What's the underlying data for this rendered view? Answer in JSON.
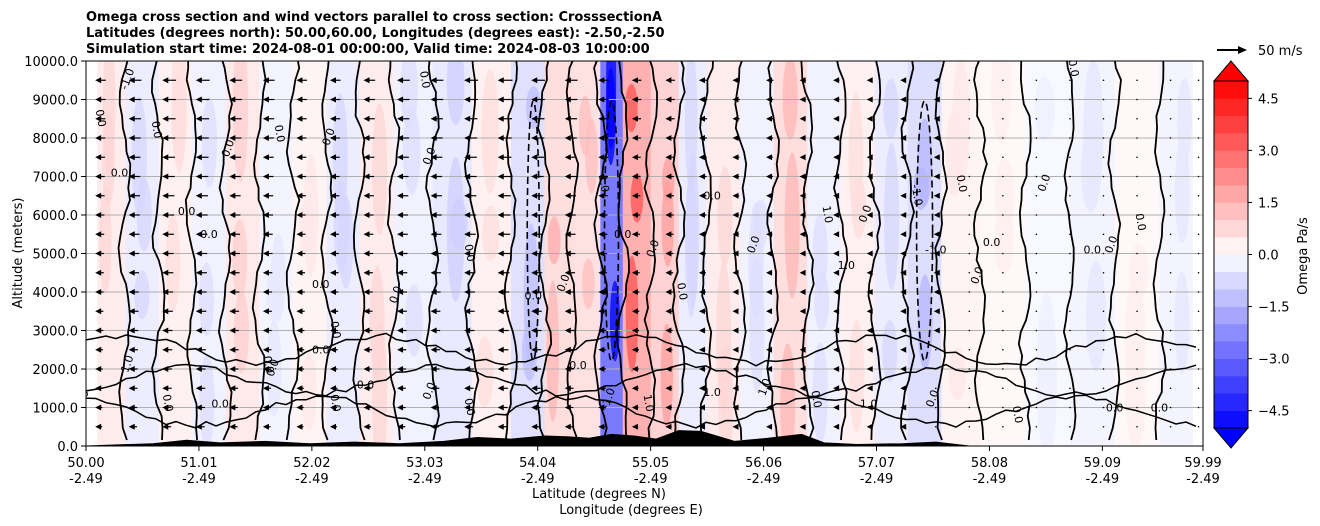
{
  "chart_data": {
    "type": "heatmap",
    "title_lines": [
      "Omega cross section and wind vectors parallel to cross section: CrosssectionA",
      "Latitudes (degrees north): 50.00,60.00, Longitudes (degrees east): -2.50,-2.50",
      "Simulation start time: 2024-08-01 00:00:00, Valid time: 2024-08-03 10:00:00"
    ],
    "xlabel_lines": [
      "Latitude (degrees N)",
      "Longitude (degrees E)"
    ],
    "ylabel": "Altitude (meters)",
    "x_ticks": [
      {
        "lat": "50.00",
        "lon": "-2.49",
        "value": 50.0
      },
      {
        "lat": "51.01",
        "lon": "-2.49",
        "value": 51.01
      },
      {
        "lat": "52.02",
        "lon": "-2.49",
        "value": 52.02
      },
      {
        "lat": "53.03",
        "lon": "-2.49",
        "value": 53.03
      },
      {
        "lat": "54.04",
        "lon": "-2.49",
        "value": 54.04
      },
      {
        "lat": "55.05",
        "lon": "-2.49",
        "value": 55.05
      },
      {
        "lat": "56.06",
        "lon": "-2.49",
        "value": 56.06
      },
      {
        "lat": "57.07",
        "lon": "-2.49",
        "value": 57.07
      },
      {
        "lat": "58.08",
        "lon": "-2.49",
        "value": 58.08
      },
      {
        "lat": "59.09",
        "lon": "-2.49",
        "value": 59.09
      },
      {
        "lat": "59.99",
        "lon": "-2.49",
        "value": 59.99
      }
    ],
    "y_ticks": [
      0,
      1000,
      2000,
      3000,
      4000,
      5000,
      6000,
      7000,
      8000,
      9000,
      10000
    ],
    "y_tick_labels": [
      "0.0",
      "1000.0",
      "2000.0",
      "3000.0",
      "4000.0",
      "5000.0",
      "6000.0",
      "7000.0",
      "8000.0",
      "9000.0",
      "10000.0"
    ],
    "xlim": [
      50.0,
      59.99
    ],
    "ylim": [
      0,
      10000
    ],
    "grid": "horizontal",
    "colorbar": {
      "label": "Omega Pa/s",
      "ticks": [
        4.5,
        3.0,
        1.5,
        0.0,
        -1.5,
        -3.0,
        -4.5
      ],
      "tick_labels": [
        "4.5",
        "3.0",
        "1.5",
        "0.0",
        "−1.5",
        "−3.0",
        "−4.5"
      ],
      "range": [
        -5.0,
        5.0
      ],
      "colormap": "bwr"
    },
    "wind_key": {
      "label": "50 m/s"
    },
    "omega_bands": [
      {
        "lat": 50.2,
        "omega": 0.5
      },
      {
        "lat": 50.5,
        "omega": -0.5
      },
      {
        "lat": 50.8,
        "omega": 0.4
      },
      {
        "lat": 51.1,
        "omega": -0.4
      },
      {
        "lat": 51.4,
        "omega": 0.6
      },
      {
        "lat": 51.7,
        "omega": -0.3
      },
      {
        "lat": 52.0,
        "omega": 0.3
      },
      {
        "lat": 52.3,
        "omega": -0.5
      },
      {
        "lat": 52.6,
        "omega": 0.5
      },
      {
        "lat": 52.9,
        "omega": -0.4
      },
      {
        "lat": 53.3,
        "omega": -0.6
      },
      {
        "lat": 53.6,
        "omega": 0.4
      },
      {
        "lat": 54.0,
        "omega": -0.8
      },
      {
        "lat": 54.2,
        "omega": 0.9
      },
      {
        "lat": 54.5,
        "omega": 0.8
      },
      {
        "lat": 54.7,
        "omega": -3.6
      },
      {
        "lat": 54.9,
        "omega": 2.1
      },
      {
        "lat": 55.2,
        "omega": 1.2
      },
      {
        "lat": 55.4,
        "omega": -0.5
      },
      {
        "lat": 55.7,
        "omega": 0.5
      },
      {
        "lat": 56.0,
        "omega": -0.4
      },
      {
        "lat": 56.3,
        "omega": 0.9
      },
      {
        "lat": 56.6,
        "omega": -0.4
      },
      {
        "lat": 56.9,
        "omega": 0.4
      },
      {
        "lat": 57.2,
        "omega": -0.5
      },
      {
        "lat": 57.5,
        "omega": -0.9
      },
      {
        "lat": 57.8,
        "omega": 0.3
      },
      {
        "lat": 58.2,
        "omega": 0.2
      },
      {
        "lat": 58.6,
        "omega": -0.2
      },
      {
        "lat": 59.0,
        "omega": -0.3
      },
      {
        "lat": 59.4,
        "omega": 0.2
      },
      {
        "lat": 59.8,
        "omega": -0.3
      }
    ],
    "contour_labels": [
      {
        "lat": 50.1,
        "alt": 8500,
        "text": "0.0"
      },
      {
        "lat": 50.3,
        "alt": 7000,
        "text": "0.0"
      },
      {
        "lat": 50.4,
        "alt": 9500,
        "text": "-1.0"
      },
      {
        "lat": 50.6,
        "alt": 8200,
        "text": "0.0"
      },
      {
        "lat": 50.9,
        "alt": 6000,
        "text": "0.0"
      },
      {
        "lat": 51.3,
        "alt": 7700,
        "text": "0.0"
      },
      {
        "lat": 51.7,
        "alt": 8100,
        "text": "0.0"
      },
      {
        "lat": 51.1,
        "alt": 5400,
        "text": "0.0"
      },
      {
        "lat": 52.2,
        "alt": 8000,
        "text": "0.0"
      },
      {
        "lat": 53.0,
        "alt": 9500,
        "text": "0.0"
      },
      {
        "lat": 52.1,
        "alt": 4100,
        "text": "0.0"
      },
      {
        "lat": 53.1,
        "alt": 7500,
        "text": "0.0"
      },
      {
        "lat": 52.2,
        "alt": 3000,
        "text": "0.0"
      },
      {
        "lat": 52.1,
        "alt": 2400,
        "text": "0.0"
      },
      {
        "lat": 52.8,
        "alt": 3900,
        "text": "0.0"
      },
      {
        "lat": 53.4,
        "alt": 5000,
        "text": "0.0"
      },
      {
        "lat": 54.0,
        "alt": 3800,
        "text": "0.0"
      },
      {
        "lat": 54.3,
        "alt": 4200,
        "text": "0.0"
      },
      {
        "lat": 54.6,
        "alt": 6800,
        "text": "1.0"
      },
      {
        "lat": 54.8,
        "alt": 5400,
        "text": "0.0"
      },
      {
        "lat": 55.1,
        "alt": 5100,
        "text": "0.0"
      },
      {
        "lat": 55.3,
        "alt": 4000,
        "text": "0.0"
      },
      {
        "lat": 55.6,
        "alt": 6400,
        "text": "0.0"
      },
      {
        "lat": 56.0,
        "alt": 5200,
        "text": "0.0"
      },
      {
        "lat": 56.6,
        "alt": 6000,
        "text": "1.0"
      },
      {
        "lat": 56.8,
        "alt": 4600,
        "text": "1.0"
      },
      {
        "lat": 57.0,
        "alt": 6000,
        "text": "0.0"
      },
      {
        "lat": 57.4,
        "alt": 6500,
        "text": "-1.0"
      },
      {
        "lat": 57.6,
        "alt": 5000,
        "text": "-1.0"
      },
      {
        "lat": 58.0,
        "alt": 4400,
        "text": "0.0"
      },
      {
        "lat": 57.8,
        "alt": 6800,
        "text": "0.0"
      },
      {
        "lat": 58.1,
        "alt": 5200,
        "text": "0.0"
      },
      {
        "lat": 58.6,
        "alt": 6800,
        "text": "0.0"
      },
      {
        "lat": 58.8,
        "alt": 9800,
        "text": "0.0"
      },
      {
        "lat": 59.0,
        "alt": 5000,
        "text": "0.0"
      },
      {
        "lat": 59.2,
        "alt": 5200,
        "text": "0.0"
      },
      {
        "lat": 59.4,
        "alt": 5800,
        "text": "0.0"
      },
      {
        "lat": 59.2,
        "alt": 900,
        "text": "0.0"
      },
      {
        "lat": 50.4,
        "alt": 2100,
        "text": "1.0"
      },
      {
        "lat": 50.7,
        "alt": 1100,
        "text": "0.0"
      },
      {
        "lat": 51.2,
        "alt": 1000,
        "text": "0.0"
      },
      {
        "lat": 51.7,
        "alt": 2000,
        "text": "0.0"
      },
      {
        "lat": 52.2,
        "alt": 1100,
        "text": "0.0"
      },
      {
        "lat": 52.5,
        "alt": 1500,
        "text": "0.0"
      },
      {
        "lat": 53.1,
        "alt": 1400,
        "text": "0.0"
      },
      {
        "lat": 53.4,
        "alt": 1000,
        "text": "0.0"
      },
      {
        "lat": 54.4,
        "alt": 2000,
        "text": "0.0"
      },
      {
        "lat": 54.7,
        "alt": 1200,
        "text": "-1.0"
      },
      {
        "lat": 55.0,
        "alt": 1100,
        "text": "1.0"
      },
      {
        "lat": 55.6,
        "alt": 1300,
        "text": "1.0"
      },
      {
        "lat": 56.1,
        "alt": 1500,
        "text": "1.0"
      },
      {
        "lat": 56.5,
        "alt": 1200,
        "text": "0.0"
      },
      {
        "lat": 57.0,
        "alt": 1000,
        "text": "1.0"
      },
      {
        "lat": 57.6,
        "alt": 1200,
        "text": "0.0"
      },
      {
        "lat": 58.3,
        "alt": 800,
        "text": "0.0"
      },
      {
        "lat": 59.6,
        "alt": 900,
        "text": "0.0"
      },
      {
        "lat": 50.0,
        "alt": 1200,
        "text": "0.0"
      },
      {
        "lat": 51.6,
        "alt": 2100,
        "text": "0.0"
      }
    ],
    "wind_columns": [
      {
        "lat": 50.1,
        "speed": 8
      },
      {
        "lat": 50.4,
        "speed": 10
      },
      {
        "lat": 50.7,
        "speed": 11
      },
      {
        "lat": 51.0,
        "speed": 11
      },
      {
        "lat": 51.3,
        "speed": 10
      },
      {
        "lat": 51.6,
        "speed": 9
      },
      {
        "lat": 51.9,
        "speed": 8
      },
      {
        "lat": 52.2,
        "speed": 8
      },
      {
        "lat": 52.5,
        "speed": 9
      },
      {
        "lat": 52.8,
        "speed": 10
      },
      {
        "lat": 53.1,
        "speed": 10
      },
      {
        "lat": 53.4,
        "speed": 11
      },
      {
        "lat": 53.7,
        "speed": 12
      },
      {
        "lat": 54.0,
        "speed": 11
      },
      {
        "lat": 54.3,
        "speed": 10
      },
      {
        "lat": 54.6,
        "speed": 8
      },
      {
        "lat": 54.9,
        "speed": 7
      },
      {
        "lat": 55.2,
        "speed": 7
      },
      {
        "lat": 55.5,
        "speed": 6
      },
      {
        "lat": 55.8,
        "speed": 5
      },
      {
        "lat": 56.1,
        "speed": 5
      },
      {
        "lat": 56.4,
        "speed": 4
      },
      {
        "lat": 56.7,
        "speed": 4
      },
      {
        "lat": 57.0,
        "speed": 3
      },
      {
        "lat": 57.3,
        "speed": 3
      },
      {
        "lat": 57.6,
        "speed": 2
      },
      {
        "lat": 57.9,
        "speed": 1
      },
      {
        "lat": 58.2,
        "speed": 1
      },
      {
        "lat": 58.5,
        "speed": 1
      },
      {
        "lat": 58.8,
        "speed": 1
      },
      {
        "lat": 59.1,
        "speed": 1
      },
      {
        "lat": 59.4,
        "speed": 1
      },
      {
        "lat": 59.7,
        "speed": 1
      },
      {
        "lat": 59.95,
        "speed": 1
      }
    ],
    "terrain": [
      {
        "lat": 50.0,
        "alt": 0
      },
      {
        "lat": 50.6,
        "alt": 60
      },
      {
        "lat": 50.9,
        "alt": 150
      },
      {
        "lat": 51.2,
        "alt": 80
      },
      {
        "lat": 51.6,
        "alt": 120
      },
      {
        "lat": 52.0,
        "alt": 60
      },
      {
        "lat": 52.4,
        "alt": 100
      },
      {
        "lat": 52.8,
        "alt": 60
      },
      {
        "lat": 53.2,
        "alt": 120
      },
      {
        "lat": 53.5,
        "alt": 220
      },
      {
        "lat": 53.8,
        "alt": 180
      },
      {
        "lat": 54.1,
        "alt": 260
      },
      {
        "lat": 54.3,
        "alt": 240
      },
      {
        "lat": 54.5,
        "alt": 200
      },
      {
        "lat": 54.7,
        "alt": 300
      },
      {
        "lat": 54.9,
        "alt": 260
      },
      {
        "lat": 55.1,
        "alt": 180
      },
      {
        "lat": 55.3,
        "alt": 400
      },
      {
        "lat": 55.5,
        "alt": 380
      },
      {
        "lat": 55.8,
        "alt": 120
      },
      {
        "lat": 56.1,
        "alt": 200
      },
      {
        "lat": 56.4,
        "alt": 300
      },
      {
        "lat": 56.6,
        "alt": 80
      },
      {
        "lat": 56.9,
        "alt": 40
      },
      {
        "lat": 57.3,
        "alt": 60
      },
      {
        "lat": 57.6,
        "alt": 100
      },
      {
        "lat": 57.9,
        "alt": 0
      },
      {
        "lat": 59.99,
        "alt": 0
      }
    ]
  }
}
